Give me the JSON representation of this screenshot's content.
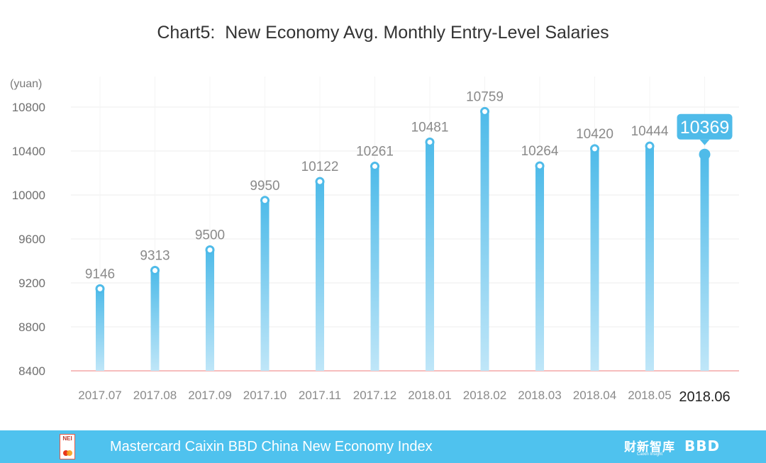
{
  "chart_data": {
    "type": "bar",
    "title": "Chart5:  New Economy Avg. Monthly Entry-Level Salaries",
    "ylabel": "(yuan)",
    "xlabel": "",
    "ylim": [
      8400,
      10800
    ],
    "yticks": [
      8400,
      8800,
      9200,
      9600,
      10000,
      10400,
      10800
    ],
    "categories": [
      "2017.07",
      "2017.08",
      "2017.09",
      "2017.10",
      "2017.11",
      "2017.12",
      "2018.01",
      "2018.02",
      "2018.03",
      "2018.04",
      "2018.05",
      "2018.06"
    ],
    "values": [
      9146,
      9313,
      9500,
      9950,
      10122,
      10261,
      10481,
      10759,
      10264,
      10420,
      10444,
      10369
    ],
    "highlight_index": 11,
    "grid": true
  },
  "colors": {
    "bar_top": "#4fbbe9",
    "bar_bottom": "#bfe6f8",
    "marker": "#4fbbe9",
    "baseline": "#f3a7a7",
    "grid": "#eeeeee",
    "footer_bg": "#4fc2ee"
  },
  "footer": {
    "title": "Mastercard Caixin BBD China New Economy Index",
    "logo_left_text": "NEI",
    "logo_caixin": "财新智库",
    "logo_caixin_sub": "Caixin Insight",
    "logo_bbd": "BBD"
  }
}
